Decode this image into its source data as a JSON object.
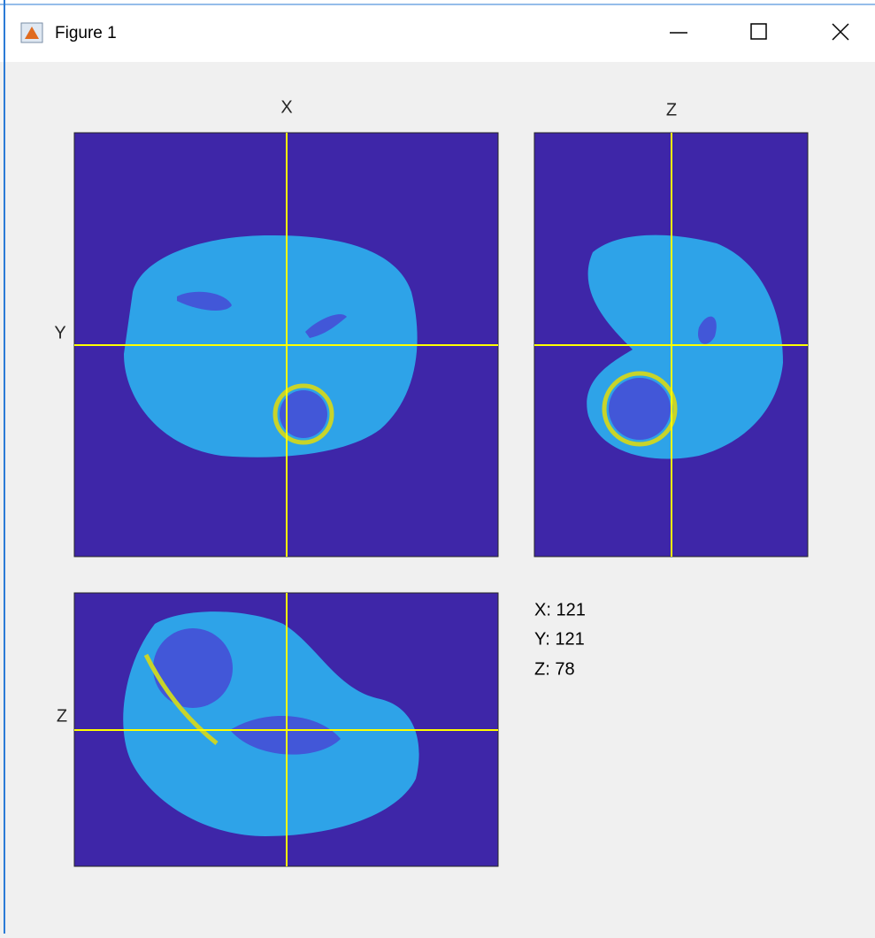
{
  "window": {
    "title": "Figure 1"
  },
  "panels": [
    {
      "top_label": "X",
      "left_label": "Y"
    },
    {
      "top_label": "Z"
    },
    {
      "left_label": "Z"
    }
  ],
  "readout": [
    "X: 121",
    "Y: 121",
    "Z: 78"
  ]
}
